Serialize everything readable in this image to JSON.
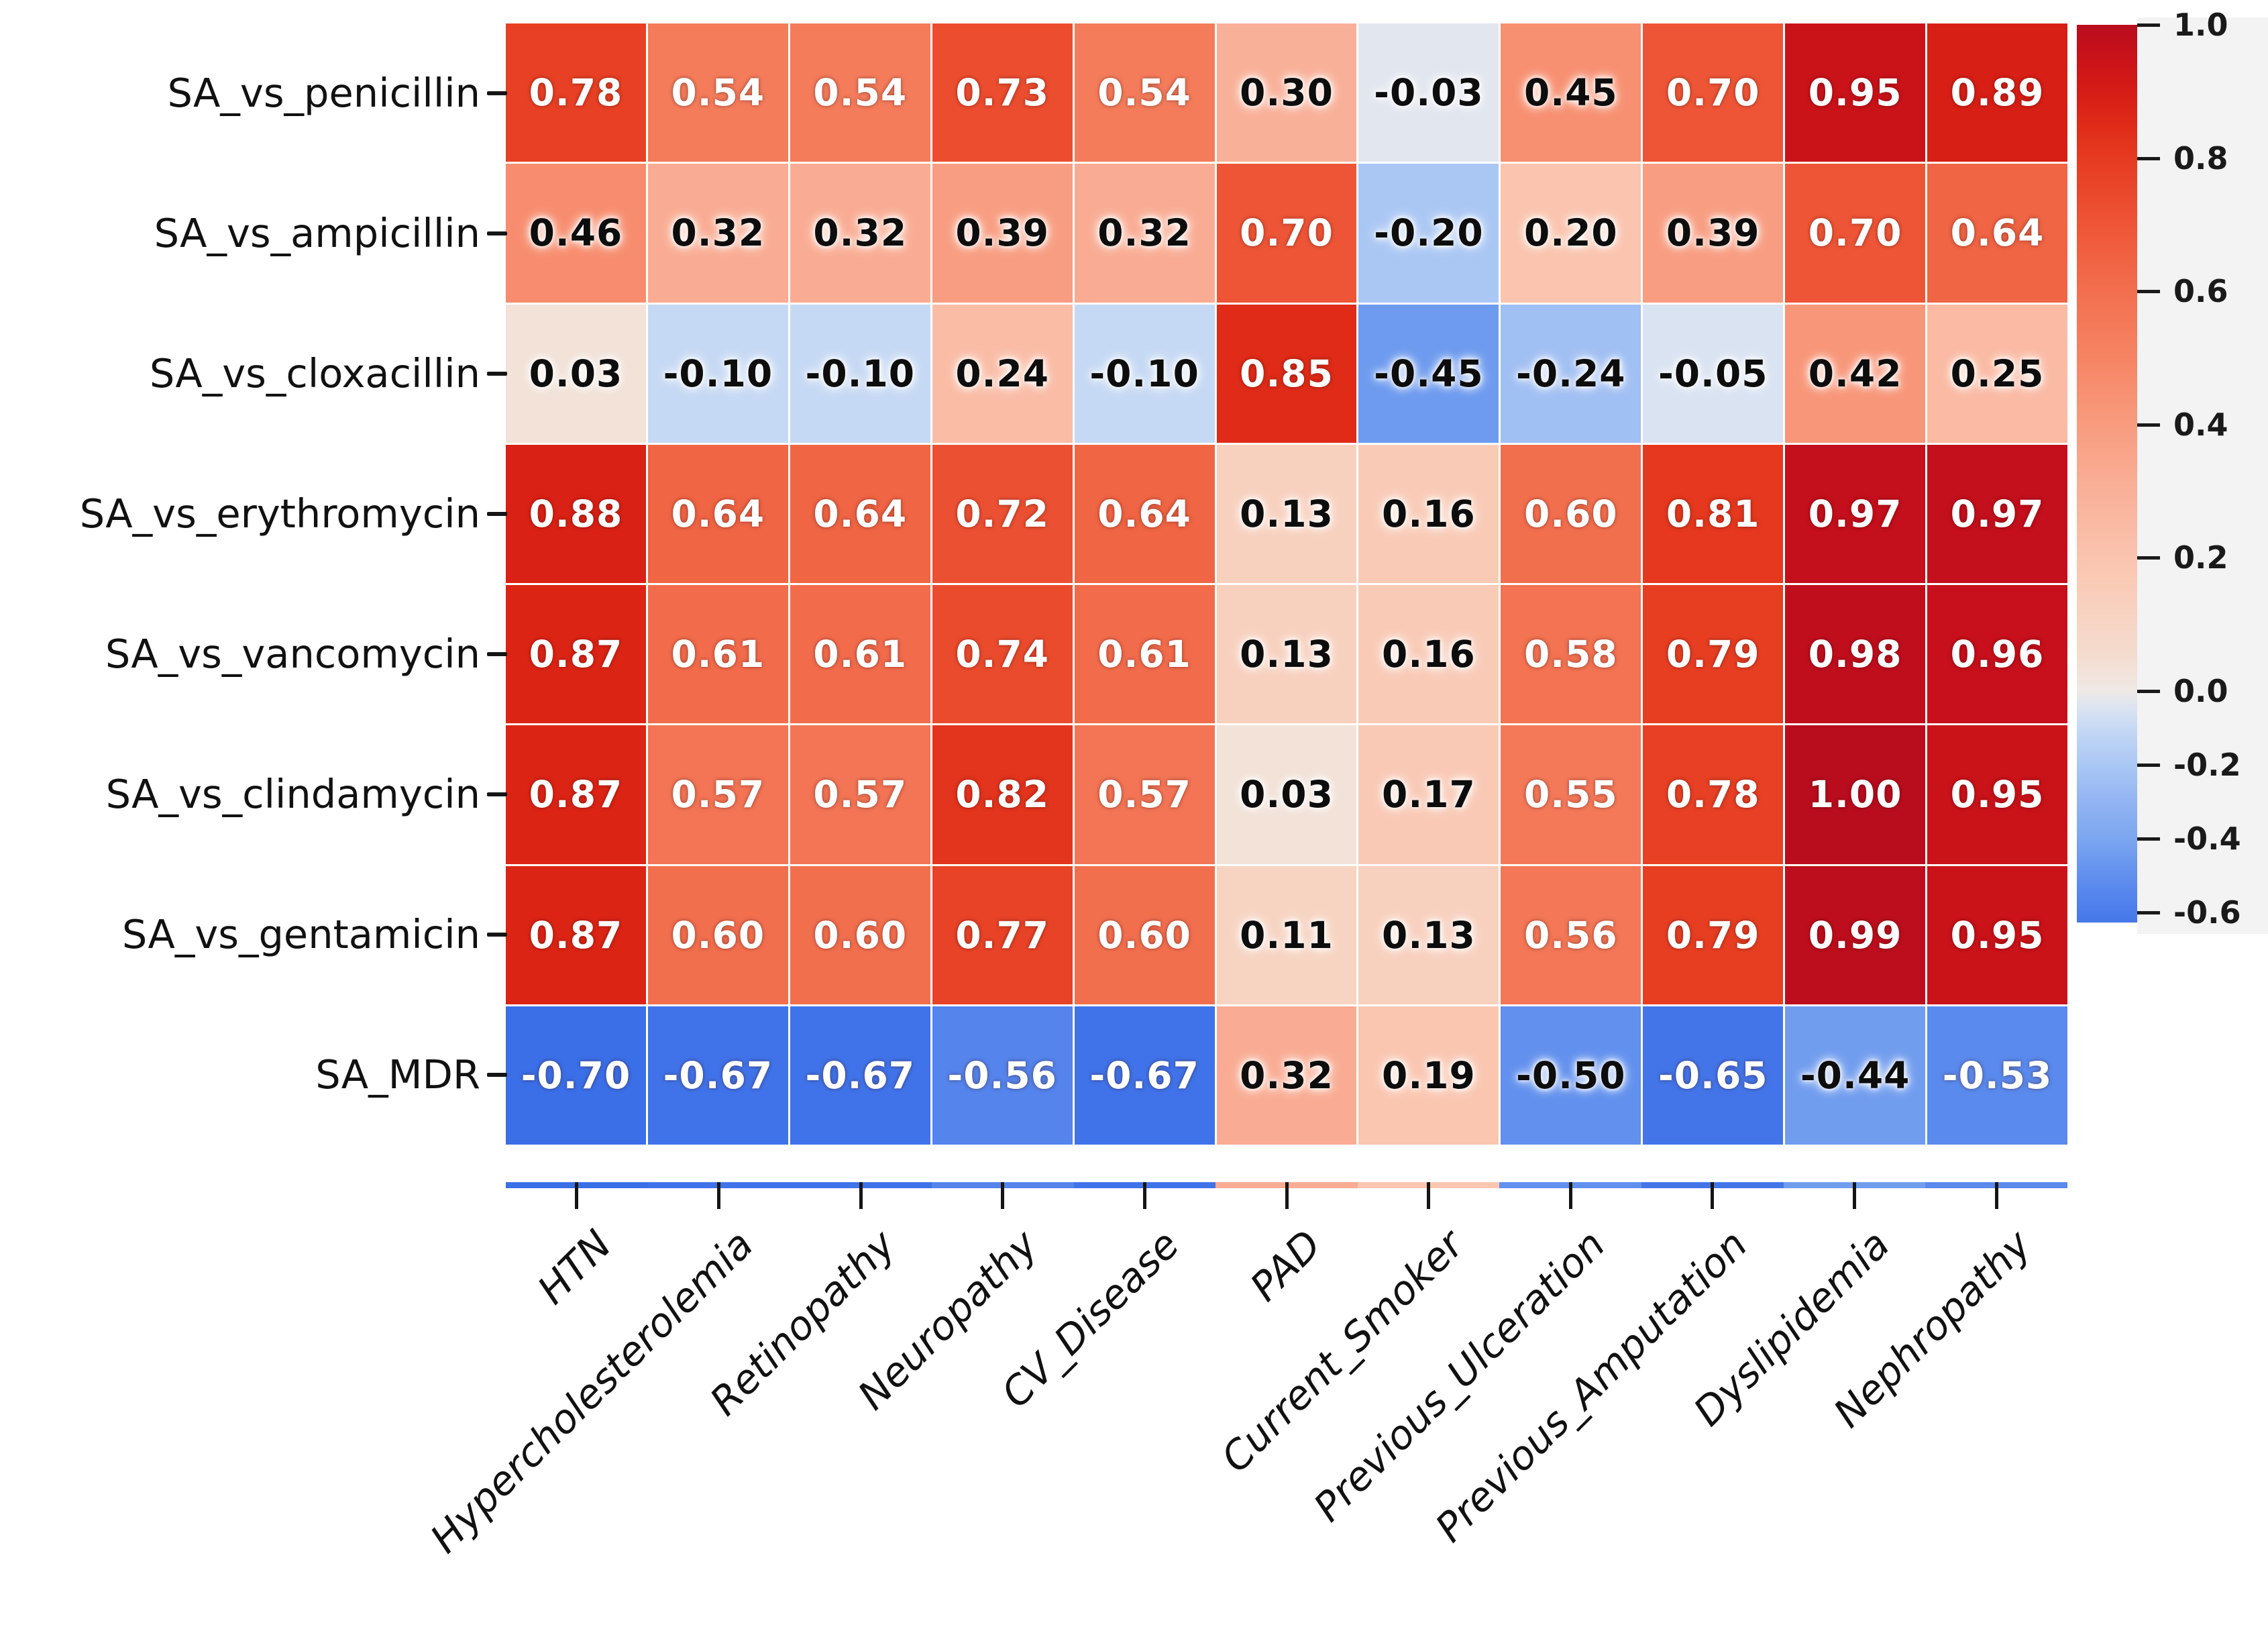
{
  "figure": {
    "background": "#ffffff"
  },
  "chart_data": {
    "type": "heatmap",
    "title": "",
    "xlabel": "",
    "ylabel": "",
    "grid": false,
    "legend_position": "right-colorbar",
    "x_labels": [
      "HTN",
      "Hypercholesterolemia",
      "Retinopathy",
      "Neuropathy",
      "CV_Disease",
      "PAD",
      "Current_Smoker",
      "Previous_Ulceration",
      "Previous_Amputation",
      "Dyslipidemia",
      "Nephropathy"
    ],
    "y_labels": [
      "SA_vs_penicillin",
      "SA_vs_ampicillin",
      "SA_vs_cloxacillin",
      "SA_vs_erythromycin",
      "SA_vs_vancomycin",
      "SA_vs_clindamycin",
      "SA_vs_gentamicin",
      "SA_MDR"
    ],
    "series": [
      {
        "name": "SA_vs_penicillin",
        "values": [
          0.78,
          0.54,
          0.54,
          0.73,
          0.54,
          0.3,
          -0.03,
          0.45,
          0.7,
          0.95,
          0.89
        ]
      },
      {
        "name": "SA_vs_ampicillin",
        "values": [
          0.46,
          0.32,
          0.32,
          0.39,
          0.32,
          0.7,
          -0.2,
          0.2,
          0.39,
          0.7,
          0.64
        ]
      },
      {
        "name": "SA_vs_cloxacillin",
        "values": [
          0.03,
          -0.1,
          -0.1,
          0.24,
          -0.1,
          0.85,
          -0.45,
          -0.24,
          -0.05,
          0.42,
          0.25
        ]
      },
      {
        "name": "SA_vs_erythromycin",
        "values": [
          0.88,
          0.64,
          0.64,
          0.72,
          0.64,
          0.13,
          0.16,
          0.6,
          0.81,
          0.97,
          0.97
        ]
      },
      {
        "name": "SA_vs_vancomycin",
        "values": [
          0.87,
          0.61,
          0.61,
          0.74,
          0.61,
          0.13,
          0.16,
          0.58,
          0.79,
          0.98,
          0.96
        ]
      },
      {
        "name": "SA_vs_clindamycin",
        "values": [
          0.87,
          0.57,
          0.57,
          0.82,
          0.57,
          0.03,
          0.17,
          0.55,
          0.78,
          1.0,
          0.95
        ]
      },
      {
        "name": "SA_vs_gentamicin",
        "values": [
          0.87,
          0.6,
          0.6,
          0.77,
          0.6,
          0.11,
          0.13,
          0.56,
          0.79,
          0.99,
          0.95
        ]
      },
      {
        "name": "SA_MDR",
        "values": [
          -0.7,
          -0.67,
          -0.67,
          -0.56,
          -0.67,
          0.32,
          0.19,
          -0.5,
          -0.65,
          -0.44,
          -0.53
        ]
      }
    ],
    "value_format": "two_decimals",
    "colorbar": {
      "tick_labels": [
        "1.0",
        "0.8",
        "0.6",
        "0.4",
        "0.2",
        "0.0",
        "-0.2",
        "-0.4",
        "-0.6"
      ],
      "tick_values": [
        1.0,
        0.8,
        0.6,
        0.4,
        0.2,
        0.0,
        -0.2,
        -0.4,
        -0.6
      ],
      "max_color": "#b90d1e",
      "mid_color": "#efe9e5",
      "min_color": "#386ce7"
    }
  }
}
